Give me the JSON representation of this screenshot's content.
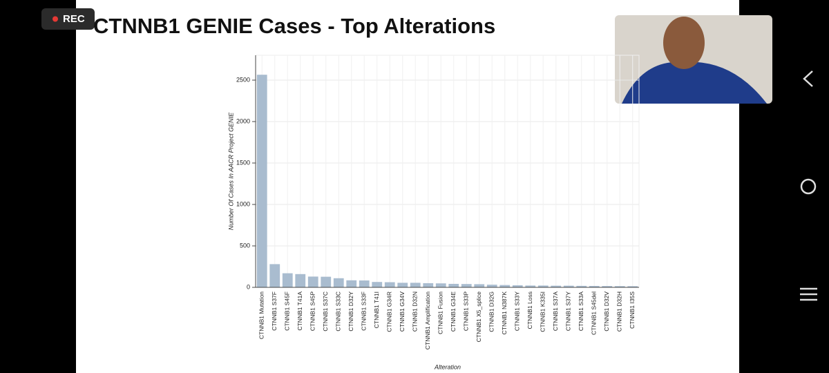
{
  "recording": "REC",
  "chart_data": {
    "type": "bar",
    "title": "CTNNB1 GENIE Cases - Top Alterations",
    "x_label": "Alteration",
    "y_label": "Number Of Cases In AACR Project GENIE",
    "categories": [
      "CTNNB1 Mutation",
      "CTNNB1 S37F",
      "CTNNB1 S45F",
      "CTNNB1 T41A",
      "CTNNB1 S45P",
      "CTNNB1 S37C",
      "CTNNB1 S33C",
      "CTNNB1 D32Y",
      "CTNNB1 S33F",
      "CTNNB1 T41I",
      "CTNNB1 G34R",
      "CTNNB1 G34V",
      "CTNNB1 D32N",
      "CTNNB1 Amplification",
      "CTNNB1 Fusion",
      "CTNNB1 G34E",
      "CTNNB1 S33P",
      "CTNNB1 X5_splice",
      "CTNNB1 D32G",
      "CTNNB1 N387K",
      "CTNNB1 S33Y",
      "CTNNB1 Loss",
      "CTNNB1 K335I",
      "CTNNB1 S37A",
      "CTNNB1 S37Y",
      "CTNNB1 S33A",
      "CTNNB1 S45del",
      "CTNNB1 D32V",
      "CTNNB1 D32H",
      "CTNNB1 I35S"
    ],
    "values": [
      2565,
      280,
      170,
      160,
      130,
      128,
      110,
      85,
      83,
      65,
      62,
      55,
      55,
      50,
      48,
      42,
      40,
      38,
      32,
      28,
      25,
      22,
      22,
      20,
      20,
      18,
      17,
      16,
      15,
      14
    ],
    "color": "#a9bccf",
    "ylim": [
      0,
      2800
    ],
    "yticks": [
      0,
      500,
      1000,
      1500,
      2000,
      2500
    ],
    "grid": true
  }
}
